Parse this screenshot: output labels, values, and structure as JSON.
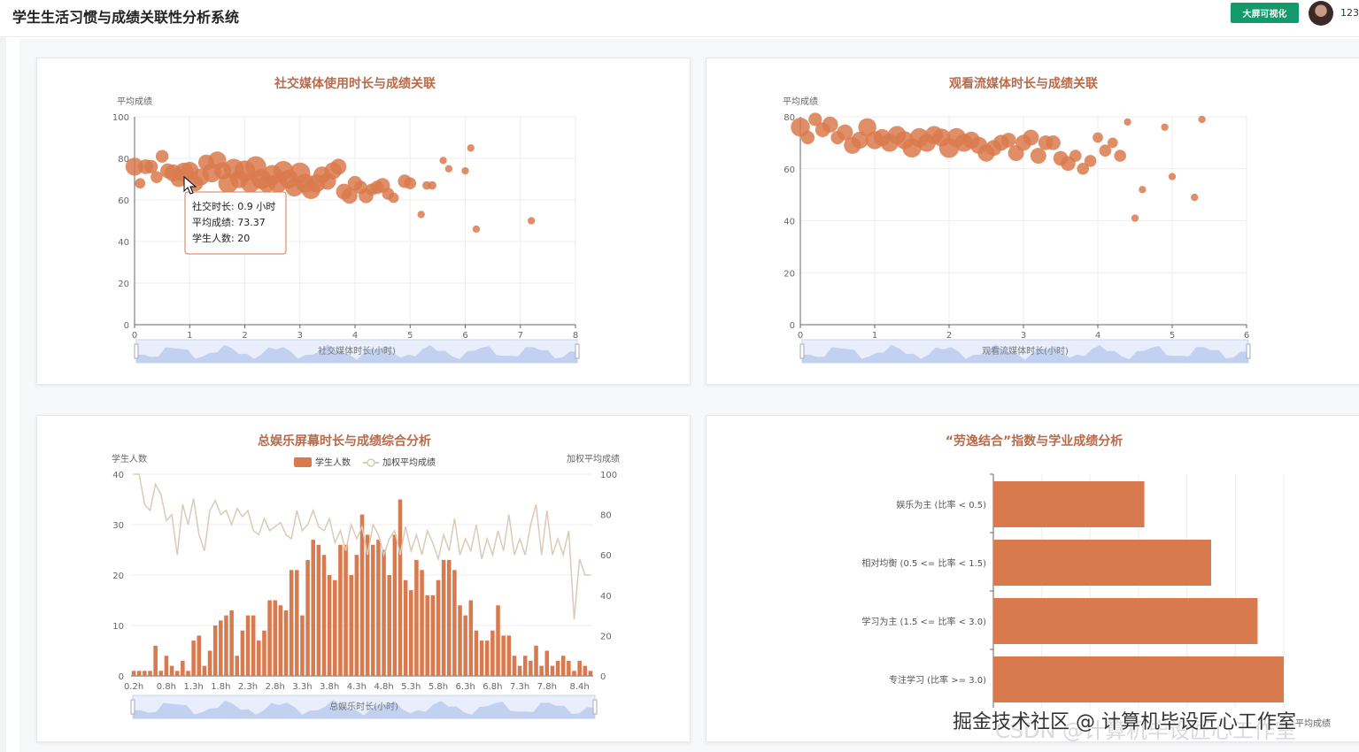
{
  "header": {
    "title": "学生生活习惯与成绩关联性分析系统",
    "bigscreen_label": "大屏可视化",
    "username": "123"
  },
  "watermark": {
    "line1": "掘金技术社区 @ 计算机毕设匠心工作室",
    "line2": "CSDN @计算机毕设匠心工作室"
  },
  "colors": {
    "accent": "#d97a4e",
    "line": "#d9cbb8",
    "primary_button": "#139a6b"
  },
  "chart_data": [
    {
      "type": "scatter",
      "title": "社交媒体使用时长与成绩关联",
      "xlabel": "社交媒体时长(小时)",
      "ylabel": "平均成绩",
      "xlim": [
        0,
        8
      ],
      "ylim": [
        0,
        100
      ],
      "xticks": [
        0,
        1,
        2,
        3,
        4,
        5,
        6,
        7,
        8
      ],
      "yticks": [
        0,
        20,
        40,
        60,
        80,
        100
      ],
      "points": [
        [
          0.0,
          76,
          18
        ],
        [
          0.1,
          68,
          6
        ],
        [
          0.2,
          76,
          12
        ],
        [
          0.3,
          76,
          10
        ],
        [
          0.4,
          71,
          8
        ],
        [
          0.5,
          81,
          9
        ],
        [
          0.6,
          74,
          12
        ],
        [
          0.7,
          73,
          16
        ],
        [
          0.8,
          70,
          14
        ],
        [
          0.9,
          73.37,
          20
        ],
        [
          1.0,
          74,
          18
        ],
        [
          1.1,
          68,
          14
        ],
        [
          1.2,
          71,
          16
        ],
        [
          1.3,
          78,
          14
        ],
        [
          1.4,
          73,
          20
        ],
        [
          1.5,
          79,
          18
        ],
        [
          1.6,
          74,
          16
        ],
        [
          1.7,
          68,
          22
        ],
        [
          1.8,
          75,
          22
        ],
        [
          1.9,
          70,
          18
        ],
        [
          2.0,
          74,
          24
        ],
        [
          2.1,
          68,
          20
        ],
        [
          2.2,
          76,
          24
        ],
        [
          2.3,
          70,
          22
        ],
        [
          2.4,
          68,
          18
        ],
        [
          2.5,
          72,
          22
        ],
        [
          2.6,
          68,
          20
        ],
        [
          2.7,
          74,
          22
        ],
        [
          2.8,
          70,
          20
        ],
        [
          2.9,
          66,
          18
        ],
        [
          3.0,
          73,
          24
        ],
        [
          3.1,
          68,
          20
        ],
        [
          3.2,
          65,
          20
        ],
        [
          3.3,
          68,
          18
        ],
        [
          3.4,
          72,
          16
        ],
        [
          3.5,
          69,
          16
        ],
        [
          3.6,
          74,
          16
        ],
        [
          3.7,
          76,
          14
        ],
        [
          3.8,
          64,
          14
        ],
        [
          3.9,
          62,
          14
        ],
        [
          4.0,
          68,
          12
        ],
        [
          4.1,
          66,
          10
        ],
        [
          4.2,
          62,
          12
        ],
        [
          4.3,
          65,
          8
        ],
        [
          4.4,
          66,
          10
        ],
        [
          4.5,
          67,
          12
        ],
        [
          4.6,
          63,
          8
        ],
        [
          4.7,
          61,
          6
        ],
        [
          4.9,
          69,
          10
        ],
        [
          5.0,
          68,
          8
        ],
        [
          5.3,
          67,
          4
        ],
        [
          5.4,
          67,
          4
        ],
        [
          5.2,
          53,
          3
        ],
        [
          5.6,
          79,
          3
        ],
        [
          5.7,
          75,
          3
        ],
        [
          6.0,
          74,
          3
        ],
        [
          6.1,
          85,
          3
        ],
        [
          6.2,
          46,
          3
        ],
        [
          7.2,
          50,
          3
        ]
      ],
      "tooltip": {
        "line1": "社交时长: 0.9 小时",
        "line2": "平均成绩: 73.37",
        "line3": "学生人数: 20"
      }
    },
    {
      "type": "scatter",
      "title": "观看流媒体时长与成绩关联",
      "xlabel": "观看流媒体时长(小时)",
      "ylabel": "平均成绩",
      "xlim": [
        0,
        6
      ],
      "ylim": [
        0,
        80
      ],
      "xticks": [
        0,
        1,
        2,
        3,
        4,
        5,
        6
      ],
      "yticks": [
        0,
        20,
        40,
        60,
        80
      ],
      "points": [
        [
          0.0,
          76,
          20
        ],
        [
          0.1,
          72,
          10
        ],
        [
          0.2,
          79,
          10
        ],
        [
          0.3,
          75,
          12
        ],
        [
          0.4,
          77,
          14
        ],
        [
          0.5,
          72,
          10
        ],
        [
          0.6,
          74,
          14
        ],
        [
          0.7,
          69,
          16
        ],
        [
          0.8,
          71,
          16
        ],
        [
          0.9,
          76,
          18
        ],
        [
          1.0,
          71,
          18
        ],
        [
          1.1,
          72,
          16
        ],
        [
          1.2,
          70,
          18
        ],
        [
          1.3,
          73,
          18
        ],
        [
          1.4,
          71,
          18
        ],
        [
          1.5,
          68,
          20
        ],
        [
          1.6,
          72,
          20
        ],
        [
          1.7,
          70,
          18
        ],
        [
          1.8,
          73,
          18
        ],
        [
          1.9,
          72,
          18
        ],
        [
          2.0,
          68,
          22
        ],
        [
          2.1,
          72,
          20
        ],
        [
          2.2,
          70,
          18
        ],
        [
          2.3,
          71,
          16
        ],
        [
          2.4,
          69,
          16
        ],
        [
          2.5,
          66,
          16
        ],
        [
          2.6,
          68,
          14
        ],
        [
          2.7,
          70,
          14
        ],
        [
          2.8,
          71,
          12
        ],
        [
          2.9,
          66,
          14
        ],
        [
          3.0,
          70,
          14
        ],
        [
          3.1,
          72,
          14
        ],
        [
          3.2,
          65,
          14
        ],
        [
          3.3,
          70,
          12
        ],
        [
          3.4,
          70,
          12
        ],
        [
          3.5,
          64,
          12
        ],
        [
          3.6,
          62,
          12
        ],
        [
          3.7,
          65,
          8
        ],
        [
          3.8,
          60,
          8
        ],
        [
          3.9,
          63,
          8
        ],
        [
          4.0,
          72,
          6
        ],
        [
          4.1,
          67,
          8
        ],
        [
          4.2,
          70,
          6
        ],
        [
          4.3,
          65,
          8
        ],
        [
          4.4,
          78,
          3
        ],
        [
          4.5,
          41,
          3
        ],
        [
          4.6,
          52,
          3
        ],
        [
          4.9,
          76,
          3
        ],
        [
          5.0,
          57,
          3
        ],
        [
          5.3,
          49,
          3
        ],
        [
          5.4,
          79,
          3
        ]
      ]
    },
    {
      "type": "bar",
      "title": "总娱乐屏幕时长与成绩综合分析",
      "xlabel": "总娱乐时长(小时)",
      "ylabel": "学生人数",
      "y2label": "加权平均成绩",
      "legend": [
        "学生人数",
        "加权平均成绩"
      ],
      "ylim": [
        0,
        40
      ],
      "y2lim": [
        0,
        100
      ],
      "yticks": [
        0,
        10,
        20,
        30,
        40
      ],
      "y2ticks": [
        0,
        20,
        40,
        60,
        80,
        100
      ],
      "categories": [
        "0.2h",
        "0.3h",
        "0.4h",
        "0.5h",
        "0.6h",
        "0.7h",
        "0.8h",
        "0.9h",
        "1.0h",
        "1.1h",
        "1.2h",
        "1.3h",
        "1.4h",
        "1.5h",
        "1.6h",
        "1.7h",
        "1.8h",
        "1.9h",
        "2.0h",
        "2.1h",
        "2.2h",
        "2.3h",
        "2.4h",
        "2.5h",
        "2.6h",
        "2.7h",
        "2.8h",
        "2.9h",
        "3.0h",
        "3.1h",
        "3.2h",
        "3.3h",
        "3.4h",
        "3.5h",
        "3.6h",
        "3.7h",
        "3.8h",
        "3.9h",
        "4.0h",
        "4.1h",
        "4.2h",
        "4.3h",
        "4.4h",
        "4.5h",
        "4.6h",
        "4.7h",
        "4.8h",
        "4.9h",
        "5.0h",
        "5.1h",
        "5.2h",
        "5.3h",
        "5.4h",
        "5.5h",
        "5.6h",
        "5.7h",
        "5.8h",
        "5.9h",
        "6.0h",
        "6.1h",
        "6.2h",
        "6.3h",
        "6.4h",
        "6.5h",
        "6.6h",
        "6.7h",
        "6.8h",
        "6.9h",
        "7.0h",
        "7.1h",
        "7.2h",
        "7.3h",
        "7.4h",
        "7.5h",
        "7.6h",
        "7.7h",
        "7.8h",
        "7.9h",
        "8.0h",
        "8.1h",
        "8.2h",
        "8.3h",
        "8.4h",
        "8.5h",
        "8.6h"
      ],
      "xtick_labels": [
        "0.2h",
        "0.8h",
        "1.3h",
        "1.8h",
        "2.3h",
        "2.8h",
        "3.3h",
        "3.8h",
        "4.3h",
        "4.8h",
        "5.3h",
        "5.8h",
        "6.3h",
        "6.8h",
        "7.3h",
        "7.8h",
        "8.4h"
      ],
      "bars": [
        1,
        1,
        1,
        1,
        6,
        1,
        4,
        2,
        1,
        3,
        1,
        7,
        8,
        2,
        5,
        10,
        11,
        12,
        13,
        4,
        9,
        12,
        12,
        7,
        9,
        15,
        15,
        14,
        13,
        21,
        21,
        12,
        23,
        27,
        26,
        24,
        20,
        19,
        26,
        26,
        20,
        24,
        32,
        28,
        26,
        27,
        25,
        20,
        28,
        35,
        19,
        17,
        23,
        21,
        16,
        16,
        19,
        23,
        23,
        21,
        14,
        12,
        15,
        9,
        7,
        7,
        9,
        14,
        8,
        8,
        4,
        2,
        4,
        3,
        6,
        2,
        5,
        2,
        3,
        4,
        3,
        1,
        3,
        2,
        1
      ],
      "line": [
        100,
        100,
        85,
        82,
        95,
        90,
        77,
        80,
        60,
        85,
        75,
        88,
        70,
        62,
        82,
        87,
        80,
        82,
        75,
        83,
        79,
        82,
        72,
        70,
        78,
        72,
        74,
        76,
        70,
        68,
        82,
        72,
        75,
        82,
        74,
        72,
        78,
        66,
        72,
        62,
        75,
        68,
        74,
        60,
        75,
        70,
        60,
        68,
        72,
        60,
        74,
        62,
        70,
        60,
        72,
        66,
        58,
        70,
        62,
        78,
        60,
        68,
        62,
        75,
        58,
        68,
        60,
        72,
        62,
        80,
        60,
        68,
        60,
        75,
        85,
        60,
        82,
        60,
        68,
        60,
        72,
        28,
        58,
        50,
        50
      ]
    },
    {
      "type": "bar",
      "orientation": "horizontal",
      "title": "“劳逸结合”指数与学业成绩分析",
      "xlabel": "平均成绩",
      "xlim": [
        0,
        100
      ],
      "categories": [
        "娱乐为主 (比率 < 0.5)",
        "相对均衡 (0.5 <= 比率 < 1.5)",
        "学习为主 (1.5 <= 比率 < 3.0)",
        "专注学习 (比率 >= 3.0)"
      ],
      "values": [
        52,
        75,
        91,
        100
      ]
    }
  ]
}
